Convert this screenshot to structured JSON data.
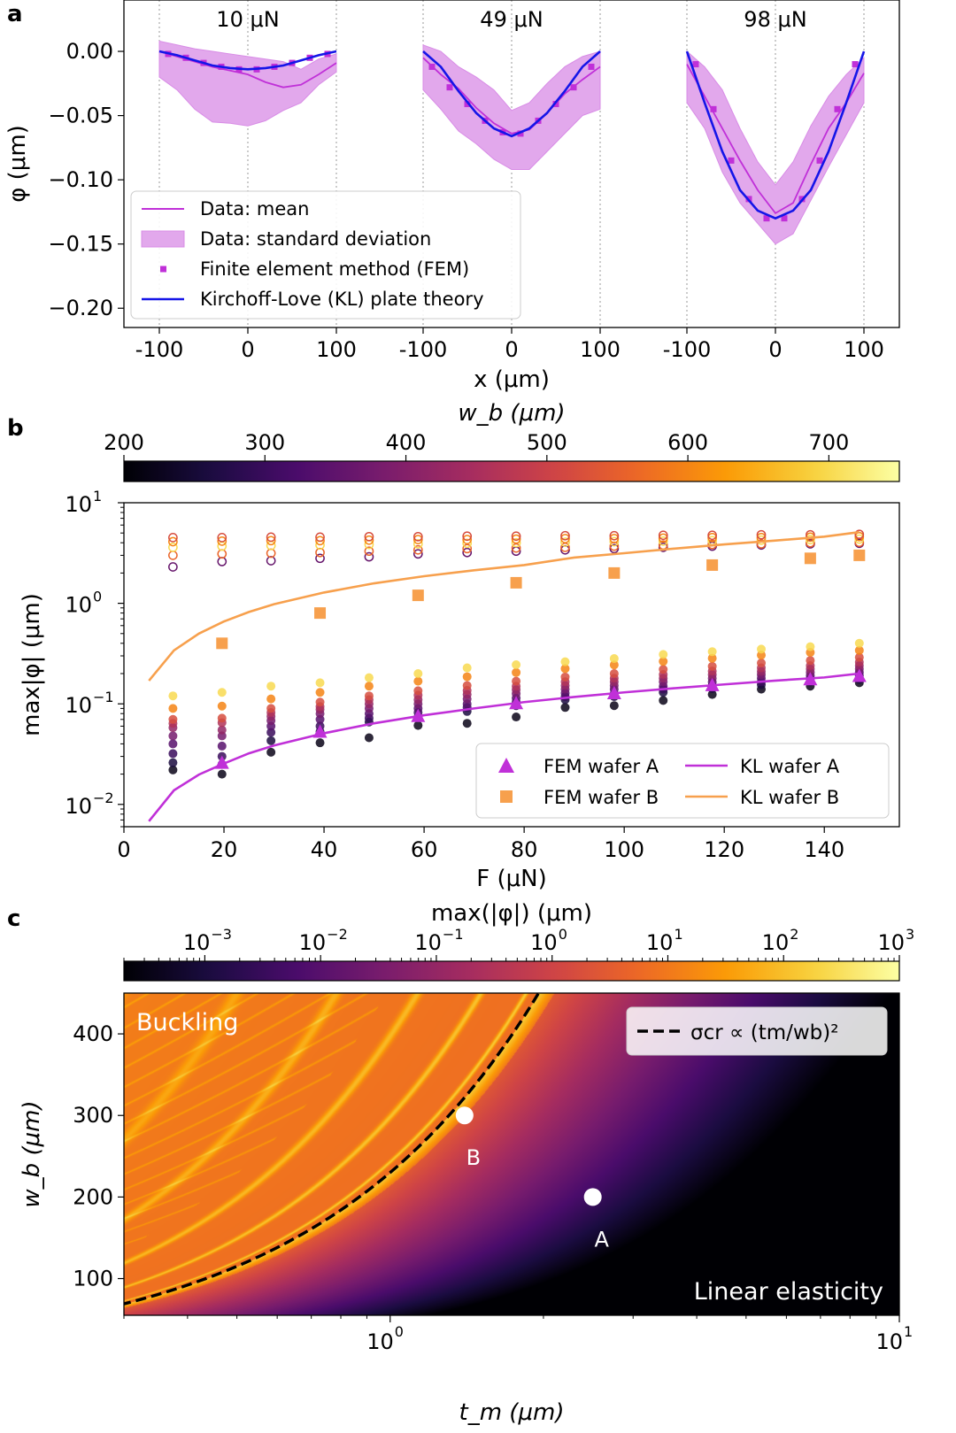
{
  "colors": {
    "magenta": "#c030d8",
    "magenta_fill": "#e2a8ec",
    "blue": "#1515e8",
    "orange": "#f7a04d",
    "black": "#000000",
    "white": "#ffffff",
    "cmap_inferno": [
      "#000004",
      "#1b0c41",
      "#4a0c6b",
      "#781c6d",
      "#a52c60",
      "#cf4446",
      "#ed6925",
      "#fb9b06",
      "#f7d13d",
      "#fcffa4"
    ]
  },
  "chart_data": [
    {
      "id": "a",
      "type": "line",
      "panel_label": "a",
      "ylabel": "φ (μm)",
      "xlabel": "x (μm)",
      "ylim": [
        -0.215,
        0.04
      ],
      "yticks": [
        "0.00",
        "−0.05",
        "−0.10",
        "−0.15",
        "−0.20"
      ],
      "ytick_values": [
        0,
        -0.05,
        -0.1,
        -0.15,
        -0.2
      ],
      "grid": "vertical dotted at x = -100, 0, 100",
      "subplots": [
        {
          "title": "10 μN",
          "xticks": [
            "-100",
            "0",
            "100"
          ],
          "x": [
            -100,
            -80,
            -60,
            -40,
            -20,
            0,
            20,
            40,
            60,
            80,
            100
          ],
          "mean": [
            0,
            -0.004,
            -0.008,
            -0.012,
            -0.015,
            -0.018,
            -0.024,
            -0.028,
            -0.026,
            -0.018,
            -0.009
          ],
          "std_upper": [
            0.008,
            0.005,
            0.002,
            0.0,
            -0.002,
            -0.004,
            -0.006,
            -0.008,
            -0.014,
            -0.006,
            -0.002
          ],
          "std_lower": [
            -0.02,
            -0.03,
            -0.045,
            -0.055,
            -0.056,
            -0.058,
            -0.054,
            -0.046,
            -0.04,
            -0.026,
            -0.016
          ],
          "fem_x": [
            -90,
            -70,
            -50,
            -30,
            -10,
            10,
            30,
            50,
            70,
            90
          ],
          "fem": [
            -0.002,
            -0.005,
            -0.009,
            -0.012,
            -0.014,
            -0.014,
            -0.012,
            -0.009,
            -0.005,
            -0.002
          ],
          "kl": [
            0,
            -0.003,
            -0.007,
            -0.011,
            -0.013,
            -0.014,
            -0.013,
            -0.011,
            -0.007,
            -0.003,
            0
          ]
        },
        {
          "title": "49 μN",
          "xticks": [
            "-100",
            "0",
            "100"
          ],
          "x": [
            -100,
            -80,
            -60,
            -40,
            -20,
            0,
            20,
            40,
            60,
            80,
            100
          ],
          "mean": [
            -0.005,
            -0.018,
            -0.029,
            -0.044,
            -0.056,
            -0.064,
            -0.061,
            -0.048,
            -0.033,
            -0.022,
            -0.012
          ],
          "std_upper": [
            0.005,
            0.0,
            -0.012,
            -0.02,
            -0.03,
            -0.046,
            -0.04,
            -0.025,
            -0.012,
            -0.004,
            0.0
          ],
          "std_lower": [
            -0.03,
            -0.045,
            -0.062,
            -0.072,
            -0.084,
            -0.092,
            -0.092,
            -0.078,
            -0.064,
            -0.05,
            -0.045
          ],
          "fem_x": [
            -90,
            -70,
            -50,
            -30,
            -10,
            10,
            30,
            50,
            70,
            90
          ],
          "fem": [
            -0.012,
            -0.028,
            -0.041,
            -0.054,
            -0.063,
            -0.064,
            -0.054,
            -0.041,
            -0.028,
            -0.012
          ],
          "kl": [
            0,
            -0.012,
            -0.031,
            -0.048,
            -0.06,
            -0.066,
            -0.06,
            -0.048,
            -0.031,
            -0.012,
            0
          ]
        },
        {
          "title": "98 μN",
          "xticks": [
            "-100",
            "0",
            "100"
          ],
          "x": [
            -100,
            -80,
            -60,
            -40,
            -20,
            0,
            20,
            40,
            60,
            80,
            100
          ],
          "mean": [
            -0.01,
            -0.035,
            -0.06,
            -0.085,
            -0.108,
            -0.126,
            -0.118,
            -0.088,
            -0.06,
            -0.04,
            -0.017
          ],
          "std_upper": [
            0.0,
            -0.012,
            -0.03,
            -0.06,
            -0.086,
            -0.104,
            -0.086,
            -0.058,
            -0.035,
            -0.018,
            -0.005
          ],
          "std_lower": [
            -0.04,
            -0.06,
            -0.094,
            -0.118,
            -0.134,
            -0.15,
            -0.142,
            -0.116,
            -0.09,
            -0.065,
            -0.04
          ],
          "fem_x": [
            -90,
            -70,
            -50,
            -30,
            -10,
            10,
            30,
            50,
            70,
            90
          ],
          "fem": [
            -0.01,
            -0.045,
            -0.085,
            -0.115,
            -0.13,
            -0.13,
            -0.115,
            -0.085,
            -0.045,
            -0.01
          ],
          "kl": [
            0,
            -0.04,
            -0.078,
            -0.108,
            -0.124,
            -0.13,
            -0.124,
            -0.108,
            -0.078,
            -0.04,
            0
          ]
        }
      ],
      "legend": {
        "placement": "lower-left",
        "entries": [
          "Data: mean",
          "Data: standard deviation",
          "Finite element method (FEM)",
          "Kirchoff-Love (KL) plate theory"
        ]
      }
    },
    {
      "id": "b",
      "type": "scatter",
      "panel_label": "b",
      "xlabel": "F (μN)",
      "ylabel": "max|φ| (μm)",
      "xlim": [
        0,
        155
      ],
      "ylim_log": [
        0.006,
        10
      ],
      "xticks": [
        "0",
        "20",
        "40",
        "60",
        "80",
        "100",
        "120",
        "140"
      ],
      "xtick_values": [
        0,
        20,
        40,
        60,
        80,
        100,
        120,
        140
      ],
      "yticks": [
        "10",
        "10",
        "10",
        "10"
      ],
      "ytick_exponents": [
        "−2",
        "−1",
        "0",
        "1"
      ],
      "ytick_values": [
        0.01,
        0.1,
        1,
        10
      ],
      "colorbar": {
        "label": "w_b (μm)",
        "range": [
          200,
          750
        ],
        "ticks": [
          "200",
          "300",
          "400",
          "500",
          "600",
          "700"
        ],
        "tick_values": [
          200,
          300,
          400,
          500,
          600,
          700
        ]
      },
      "forces": [
        9.8,
        19.6,
        29.4,
        39.2,
        49,
        58.8,
        68.6,
        78.4,
        88.2,
        98,
        107.8,
        117.6,
        127.4,
        137.2,
        147
      ],
      "sweep_wb": [
        220,
        260,
        300,
        340,
        380,
        420,
        460,
        520,
        600,
        700
      ],
      "filled_series_y": [
        [
          0.022,
          0.02,
          0.033,
          0.041,
          0.046,
          0.061,
          0.064,
          0.074,
          0.092,
          0.096,
          0.108,
          0.124,
          0.14,
          0.15,
          0.162
        ],
        [
          0.026,
          0.025,
          0.043,
          0.053,
          0.066,
          0.074,
          0.084,
          0.096,
          0.11,
          0.118,
          0.13,
          0.142,
          0.155,
          0.165,
          0.175
        ],
        [
          0.032,
          0.03,
          0.052,
          0.06,
          0.072,
          0.082,
          0.092,
          0.104,
          0.118,
          0.126,
          0.14,
          0.152,
          0.166,
          0.178,
          0.19
        ],
        [
          0.04,
          0.038,
          0.06,
          0.07,
          0.08,
          0.09,
          0.1,
          0.114,
          0.128,
          0.14,
          0.15,
          0.165,
          0.18,
          0.19,
          0.205
        ],
        [
          0.048,
          0.048,
          0.068,
          0.08,
          0.09,
          0.1,
          0.112,
          0.126,
          0.14,
          0.152,
          0.166,
          0.18,
          0.195,
          0.205,
          0.222
        ],
        [
          0.058,
          0.055,
          0.075,
          0.088,
          0.1,
          0.11,
          0.124,
          0.138,
          0.152,
          0.166,
          0.18,
          0.195,
          0.21,
          0.222,
          0.24
        ],
        [
          0.064,
          0.065,
          0.082,
          0.094,
          0.11,
          0.122,
          0.136,
          0.15,
          0.166,
          0.18,
          0.196,
          0.212,
          0.228,
          0.24,
          0.26
        ],
        [
          0.07,
          0.072,
          0.09,
          0.104,
          0.12,
          0.135,
          0.152,
          0.168,
          0.185,
          0.2,
          0.22,
          0.236,
          0.255,
          0.27,
          0.29
        ],
        [
          0.09,
          0.095,
          0.112,
          0.13,
          0.15,
          0.168,
          0.186,
          0.205,
          0.224,
          0.244,
          0.264,
          0.284,
          0.305,
          0.325,
          0.34
        ],
        [
          0.12,
          0.13,
          0.15,
          0.162,
          0.182,
          0.2,
          0.228,
          0.245,
          0.262,
          0.282,
          0.31,
          0.33,
          0.35,
          0.37,
          0.4
        ]
      ],
      "open_series_y": [
        [
          2.3,
          2.6,
          2.65,
          2.8,
          2.9,
          3.1,
          3.2,
          3.3,
          3.4,
          3.5,
          3.6,
          3.7,
          3.8,
          3.9,
          3.95
        ],
        [
          3.0,
          3.1,
          3.15,
          3.2,
          3.3,
          3.4,
          3.5,
          3.55,
          3.6,
          3.7,
          3.8,
          3.85,
          3.9,
          4.0,
          4.05
        ],
        [
          3.6,
          3.7,
          3.75,
          3.8,
          3.85,
          3.9,
          3.95,
          4.0,
          4.05,
          4.1,
          4.15,
          4.2,
          4.25,
          4.3,
          4.35
        ],
        [
          4.1,
          4.15,
          4.2,
          4.2,
          4.25,
          4.3,
          4.3,
          4.35,
          4.4,
          4.4,
          4.45,
          4.5,
          4.5,
          4.55,
          4.6
        ],
        [
          4.5,
          4.5,
          4.55,
          4.55,
          4.6,
          4.6,
          4.65,
          4.65,
          4.7,
          4.7,
          4.75,
          4.75,
          4.8,
          4.8,
          4.85
        ]
      ],
      "open_series_wb": [
        360,
        560,
        700,
        600,
        520
      ],
      "fem_wafer_a": {
        "F": [
          19.6,
          39.2,
          58.8,
          78.4,
          98,
          117.6,
          137.2,
          147
        ],
        "y": [
          0.026,
          0.053,
          0.076,
          0.102,
          0.128,
          0.154,
          0.176,
          0.19
        ]
      },
      "fem_wafer_b": {
        "F": [
          19.6,
          39.2,
          58.8,
          78.4,
          98,
          117.6,
          137.2,
          147
        ],
        "y": [
          0.4,
          0.8,
          1.2,
          1.6,
          2.0,
          2.4,
          2.8,
          3.0
        ]
      },
      "kl_wafer_a": {
        "F": [
          5,
          10,
          15,
          20,
          25,
          30,
          40,
          50,
          60,
          70,
          80,
          90,
          100,
          110,
          120,
          130,
          140,
          147
        ],
        "y": [
          0.0068,
          0.0138,
          0.0198,
          0.0255,
          0.0322,
          0.0385,
          0.051,
          0.064,
          0.077,
          0.09,
          0.104,
          0.117,
          0.13,
          0.143,
          0.156,
          0.17,
          0.183,
          0.2
        ]
      },
      "kl_wafer_b": {
        "F": [
          5,
          10,
          15,
          20,
          25,
          30,
          40,
          50,
          60,
          70,
          80,
          90,
          100,
          110,
          120,
          130,
          140,
          147
        ],
        "y": [
          0.17,
          0.34,
          0.5,
          0.66,
          0.82,
          0.98,
          1.28,
          1.58,
          1.86,
          2.13,
          2.4,
          2.85,
          3.15,
          3.5,
          3.85,
          4.2,
          4.6,
          5.1
        ]
      },
      "legend": {
        "placement": "lower-right",
        "entries": [
          "FEM wafer A",
          "FEM wafer B",
          "KL wafer A",
          "KL wafer B"
        ]
      }
    },
    {
      "id": "c",
      "type": "heatmap",
      "panel_label": "c",
      "xlabel": "t_m (μm)",
      "ylabel": "w_b (μm)",
      "xlim_log": [
        0.3,
        10
      ],
      "ylim": [
        55,
        450
      ],
      "xticks": [
        "10",
        "10"
      ],
      "xtick_exponents": [
        "0",
        "1"
      ],
      "xtick_values": [
        1,
        10
      ],
      "yticks": [
        "100",
        "200",
        "300",
        "400"
      ],
      "ytick_values": [
        100,
        200,
        300,
        400
      ],
      "colorbar": {
        "label": "max(|φ|) (μm)",
        "range_log": [
          0.0002,
          1000
        ],
        "ticks": [
          "10",
          "10",
          "10",
          "10",
          "10",
          "10",
          "10"
        ],
        "tick_exponents": [
          "−3",
          "−2",
          "−1",
          "0",
          "1",
          "2",
          "3"
        ],
        "tick_values": [
          0.001,
          0.01,
          0.1,
          1,
          10,
          100,
          1000
        ]
      },
      "critical_curve": {
        "legend": "σcr ∝ (tm/wb)²",
        "wb_over_tm": 230
      },
      "points": [
        {
          "label": "A",
          "t_m": 2.5,
          "w_b": 200
        },
        {
          "label": "B",
          "t_m": 1.4,
          "w_b": 300
        }
      ],
      "region_labels": [
        "Buckling",
        "Linear elasticity"
      ]
    }
  ]
}
